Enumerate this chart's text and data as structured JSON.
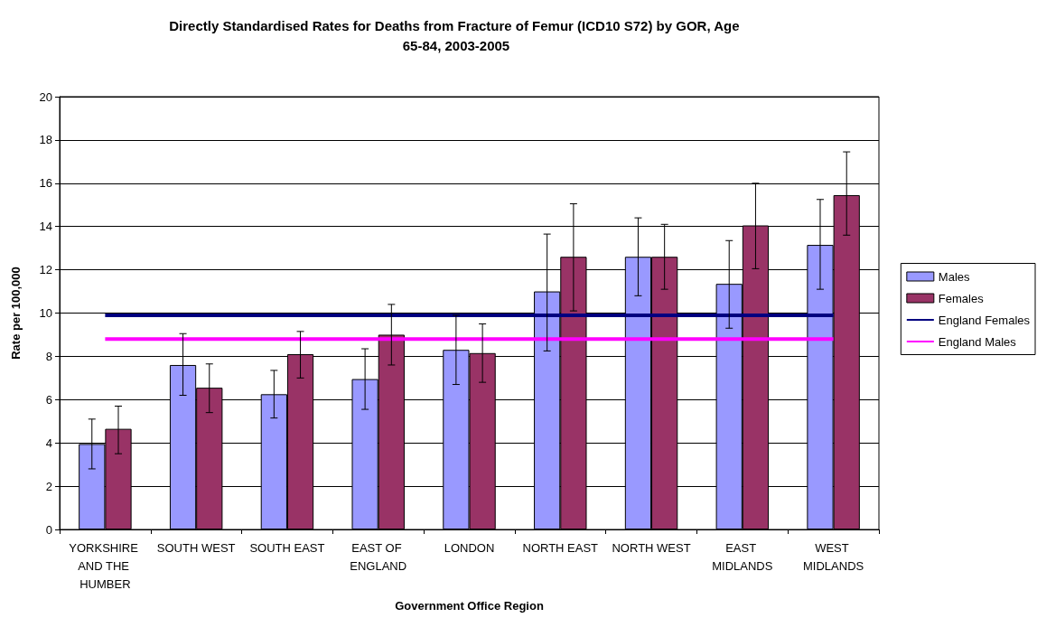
{
  "chart_data": {
    "type": "bar",
    "title": "Directly Standardised Rates for Deaths from Fracture of Femur (ICD10 S72) by GOR, Age 65-84, 2003-2005",
    "xlabel": "Government Office Region",
    "ylabel": "Rate per 100,000",
    "categories": [
      "YORKSHIRE AND THE HUMBER",
      "SOUTH WEST",
      "SOUTH EAST",
      "EAST OF ENGLAND",
      "LONDON",
      "NORTH EAST",
      "NORTH WEST",
      "EAST MIDLANDS",
      "WEST MIDLANDS"
    ],
    "series": [
      {
        "name": "Males",
        "color": "#9999ff",
        "values": [
          3.95,
          7.6,
          6.25,
          6.95,
          8.3,
          11.0,
          12.6,
          11.35,
          13.15
        ],
        "errors": [
          [
            2.8,
            5.1
          ],
          [
            6.2,
            9.05
          ],
          [
            5.15,
            7.35
          ],
          [
            5.55,
            8.35
          ],
          [
            6.7,
            9.9
          ],
          [
            8.25,
            13.65
          ],
          [
            10.8,
            14.4
          ],
          [
            9.3,
            13.35
          ],
          [
            11.1,
            15.25
          ]
        ]
      },
      {
        "name": "Females",
        "color": "#993366",
        "values": [
          4.65,
          6.55,
          8.1,
          9.0,
          8.15,
          12.6,
          12.6,
          14.05,
          15.45
        ],
        "errors": [
          [
            3.5,
            5.7
          ],
          [
            5.4,
            7.65
          ],
          [
            7.0,
            9.15
          ],
          [
            7.6,
            10.4
          ],
          [
            6.8,
            9.5
          ],
          [
            10.1,
            15.05
          ],
          [
            11.1,
            14.1
          ],
          [
            12.05,
            16.0
          ],
          [
            13.6,
            17.45
          ]
        ]
      },
      {
        "name": "England Females",
        "type": "line",
        "color": "#000080",
        "values": [
          9.9,
          9.9,
          9.9,
          9.9,
          9.9,
          9.9,
          9.9,
          9.9,
          9.9
        ]
      },
      {
        "name": "England Males",
        "type": "line",
        "color": "#ff00ff",
        "values": [
          8.8,
          8.8,
          8.8,
          8.8,
          8.8,
          8.8,
          8.8,
          8.8,
          8.8
        ]
      }
    ],
    "ylim": [
      0,
      20
    ],
    "yticks": [
      0,
      2,
      4,
      6,
      8,
      10,
      12,
      14,
      16,
      18,
      20
    ],
    "grid": "y",
    "legend": "right",
    "marker": "none"
  }
}
